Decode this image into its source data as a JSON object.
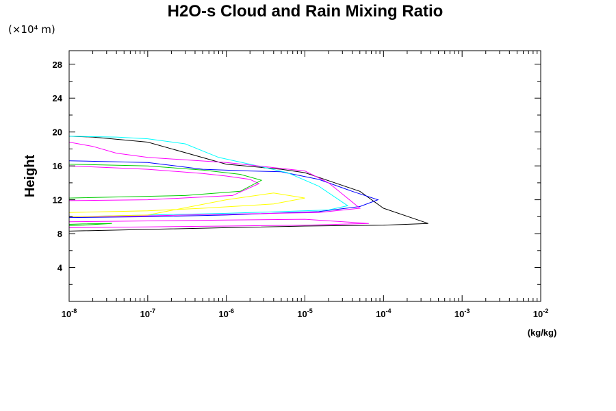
{
  "chart_data": {
    "type": "line",
    "title": "H2O-s Cloud and Rain Mixing Ratio",
    "y_scale_label": "(×10⁴ m)",
    "ylabel": "Height",
    "xlabel_unit": "(kg/kg)",
    "xscale": "log",
    "xlim": [
      1e-08,
      0.01
    ],
    "ylim": [
      0,
      29.6
    ],
    "x_tick_base": "10",
    "x_ticks": [
      {
        "value": 1e-08,
        "exp": "-8"
      },
      {
        "value": 1e-07,
        "exp": "-7"
      },
      {
        "value": 1e-06,
        "exp": "-6"
      },
      {
        "value": 1e-05,
        "exp": "-5"
      },
      {
        "value": 0.0001,
        "exp": "-4"
      },
      {
        "value": 0.001,
        "exp": "-3"
      },
      {
        "value": 0.01,
        "exp": "-2"
      }
    ],
    "y_ticks": [
      4,
      8,
      12,
      16,
      20,
      24,
      28
    ],
    "grid": false,
    "series": [
      {
        "color": "#000000",
        "x": [
          1e-08,
          2e-08,
          1e-07,
          1e-06,
          5e-06,
          1e-05,
          5e-05,
          0.0001,
          0.00037,
          0.0001,
          1e-05,
          1e-06,
          1e-07,
          1e-08
        ],
        "y": [
          19.5,
          19.4,
          18.8,
          16.2,
          15.6,
          15.2,
          13.0,
          11.0,
          9.2,
          9.0,
          8.9,
          8.7,
          8.5,
          8.3
        ]
      },
      {
        "color": "#0000ff",
        "x": [
          1e-08,
          1e-07,
          5e-07,
          2e-06,
          5e-06,
          1.5e-05,
          4e-05,
          8.5e-05,
          5e-05,
          1.5e-05,
          1e-06,
          1e-07,
          1e-08
        ],
        "y": [
          16.6,
          16.4,
          15.6,
          15.4,
          15.3,
          14.4,
          13.0,
          12.0,
          11.2,
          10.6,
          10.2,
          10.0,
          9.9
        ]
      },
      {
        "color": "#00ffff",
        "x": [
          1e-08,
          4e-08,
          1e-07,
          3e-07,
          8e-07,
          2e-06,
          6e-06,
          1.5e-05,
          3.5e-05,
          2e-05,
          5e-06,
          1e-06,
          1e-07,
          1e-08
        ],
        "y": [
          19.5,
          19.4,
          19.2,
          18.6,
          17.0,
          16.2,
          15.2,
          13.6,
          11.3,
          10.8,
          10.6,
          10.4,
          10.2,
          10.0
        ]
      },
      {
        "color": "#ff00ff",
        "x": [
          1e-08,
          1e-07,
          5e-07,
          1e-06,
          2e-06,
          2.6e-06,
          1.2e-06,
          1e-07,
          1e-08
        ],
        "y": [
          16.0,
          15.6,
          15.1,
          14.8,
          14.4,
          13.9,
          12.5,
          12.0,
          11.9
        ]
      },
      {
        "color": "#00cc00",
        "x": [
          1e-08,
          1e-07,
          5e-07,
          1.5e-06,
          2.8e-06,
          1.5e-06,
          3e-07,
          1e-08
        ],
        "y": [
          16.2,
          16.0,
          15.5,
          15.0,
          14.3,
          13.0,
          12.5,
          12.2
        ]
      },
      {
        "color": "#ff00ff",
        "x": [
          1e-08,
          2e-08,
          4e-08,
          1e-07,
          1e-06,
          1e-05,
          2e-05,
          5e-05,
          1.5e-05,
          1e-06,
          1e-07,
          1e-08
        ],
        "y": [
          18.8,
          18.3,
          17.5,
          17.0,
          16.4,
          15.4,
          14.0,
          11.0,
          10.5,
          10.3,
          10.1,
          10.0
        ]
      },
      {
        "color": "#ffff00",
        "x": [
          1e-08,
          1e-07,
          1e-06,
          4e-06,
          1e-05,
          4e-06,
          5e-07,
          1e-07,
          1e-08
        ],
        "y": [
          10.0,
          10.2,
          12.0,
          12.8,
          12.2,
          11.5,
          11.0,
          10.7,
          10.5
        ]
      },
      {
        "color": "#ff00ff",
        "x": [
          1e-08,
          1e-07,
          1e-06,
          1e-05,
          6.5e-05,
          1e-05,
          1e-06,
          1e-07,
          1e-08
        ],
        "y": [
          9.4,
          9.5,
          9.6,
          9.7,
          9.2,
          9.0,
          8.9,
          8.8,
          8.7
        ]
      },
      {
        "color": "#00cc00",
        "x": [
          1e-08,
          1.5e-08,
          3.5e-08,
          1.5e-08,
          1e-08
        ],
        "y": [
          9.1,
          9.15,
          9.2,
          9.0,
          8.95
        ]
      }
    ]
  }
}
